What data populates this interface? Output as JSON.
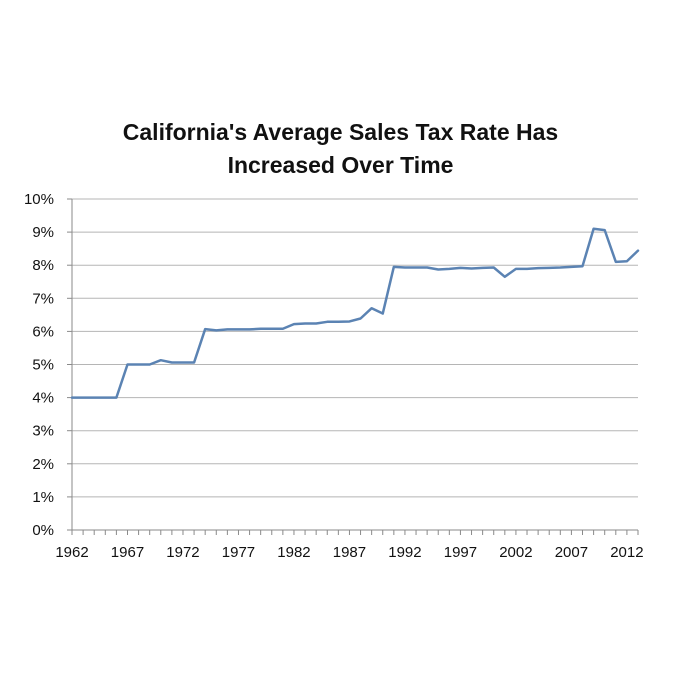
{
  "chart_data": {
    "type": "line",
    "title_lines": [
      "California's Average Sales Tax Rate Has",
      "Increased Over Time"
    ],
    "xlabel": "",
    "ylabel": "",
    "xlim": [
      1962,
      2013
    ],
    "ylim": [
      0,
      10
    ],
    "grid": "horizontal",
    "x_ticks": [
      "1962",
      "1967",
      "1972",
      "1977",
      "1982",
      "1987",
      "1992",
      "1997",
      "2002",
      "2007",
      "2012"
    ],
    "y_ticks": [
      "0%",
      "1%",
      "2%",
      "3%",
      "4%",
      "5%",
      "6%",
      "7%",
      "8%",
      "9%",
      "10%"
    ],
    "colors": {
      "line": "#5b83b3",
      "grid": "#b5b5b5",
      "axis": "#8a8a8a"
    },
    "series": [
      {
        "x": [
          1962,
          1963,
          1964,
          1965,
          1966,
          1967,
          1968,
          1969,
          1970,
          1971,
          1972,
          1973,
          1974,
          1975,
          1976,
          1977,
          1978,
          1979,
          1980,
          1981,
          1982,
          1983,
          1984,
          1985,
          1986,
          1987,
          1988,
          1989,
          1990,
          1991,
          1992,
          1993,
          1994,
          1995,
          1996,
          1997,
          1998,
          1999,
          2000,
          2001,
          2002,
          2003,
          2004,
          2005,
          2006,
          2007,
          2008,
          2009,
          2010,
          2011,
          2012,
          2013
        ],
        "values": [
          4.0,
          4.0,
          4.0,
          4.0,
          4.0,
          5.0,
          5.0,
          5.0,
          5.13,
          5.06,
          5.06,
          5.06,
          6.07,
          6.03,
          6.06,
          6.06,
          6.06,
          6.08,
          6.08,
          6.08,
          6.22,
          6.24,
          6.24,
          6.29,
          6.29,
          6.3,
          6.39,
          6.7,
          6.54,
          7.95,
          7.93,
          7.93,
          7.93,
          7.87,
          7.89,
          7.92,
          7.9,
          7.92,
          7.93,
          7.65,
          7.89,
          7.89,
          7.91,
          7.92,
          7.93,
          7.95,
          7.97,
          9.1,
          9.06,
          8.1,
          8.12,
          8.44
        ]
      }
    ]
  }
}
